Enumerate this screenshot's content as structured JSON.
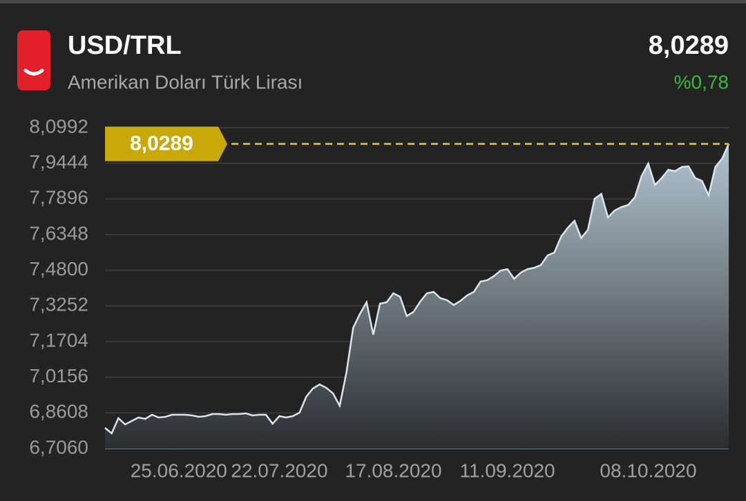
{
  "header": {
    "symbol": "USD/TRL",
    "name": "Amerikan Doları Türk Lirası",
    "price": "8,0289",
    "change": "%0,78"
  },
  "chart_data": {
    "type": "area",
    "categories": [
      null,
      null,
      null,
      null,
      null,
      null,
      null,
      null,
      null,
      null,
      null,
      "25.06.2020",
      null,
      null,
      null,
      null,
      null,
      null,
      null,
      null,
      null,
      null,
      null,
      null,
      null,
      null,
      "22.07.2020",
      null,
      null,
      null,
      null,
      null,
      null,
      null,
      null,
      null,
      null,
      null,
      null,
      null,
      null,
      null,
      null,
      "17.08.2020",
      null,
      null,
      null,
      null,
      null,
      null,
      null,
      null,
      null,
      null,
      null,
      null,
      null,
      null,
      null,
      null,
      "11.09.2020",
      null,
      null,
      null,
      null,
      null,
      null,
      null,
      null,
      null,
      null,
      null,
      null,
      null,
      null,
      null,
      null,
      null,
      null,
      null,
      null,
      "08.10.2020",
      null,
      null,
      null,
      null,
      null,
      null,
      null,
      null,
      null,
      null,
      null,
      null
    ],
    "values": [
      6.7959,
      6.7719,
      6.8378,
      6.8109,
      6.8258,
      6.8408,
      6.8348,
      6.8528,
      6.8408,
      6.8438,
      6.8528,
      6.8528,
      6.8528,
      6.8498,
      6.8438,
      6.8468,
      6.8558,
      6.8558,
      6.8528,
      6.8558,
      6.8558,
      6.8588,
      6.8498,
      6.8528,
      6.8528,
      6.8139,
      6.8468,
      6.8408,
      6.8468,
      6.8618,
      6.9307,
      6.9666,
      6.9846,
      6.9696,
      6.9457,
      6.8917,
      7.0355,
      7.2303,
      7.2902,
      7.3411,
      7.2003,
      7.3351,
      7.3411,
      7.3801,
      7.3651,
      7.2812,
      7.2992,
      7.3441,
      7.3801,
      7.386,
      7.3591,
      7.3501,
      7.3291,
      7.3471,
      7.3711,
      7.386,
      7.431,
      7.437,
      7.455,
      7.4789,
      7.4849,
      7.443,
      7.4699,
      7.4849,
      7.4909,
      7.5029,
      7.5448,
      7.5568,
      7.6257,
      7.6647,
      7.6946,
      7.6197,
      7.6557,
      7.7905,
      7.8115,
      7.7096,
      7.7396,
      7.7545,
      7.7635,
      7.7965,
      7.8893,
      7.9433,
      7.8504,
      7.8804,
      7.9163,
      7.9103,
      7.9283,
      7.9313,
      7.8804,
      7.8684,
      7.8055,
      7.9283,
      7.9642,
      8.0289
    ],
    "color": "#d8e6ee",
    "ylim": [
      6.706,
      8.0992
    ],
    "yticks": [
      {
        "value": 6.706,
        "label": "6,7060"
      },
      {
        "value": 6.8608,
        "label": "6,8608"
      },
      {
        "value": 7.0156,
        "label": "7,0156"
      },
      {
        "value": 7.1704,
        "label": "7,1704"
      },
      {
        "value": 7.3252,
        "label": "7,3252"
      },
      {
        "value": 7.48,
        "label": "7,4800"
      },
      {
        "value": 7.6348,
        "label": "7,6348"
      },
      {
        "value": 7.7896,
        "label": "7,7896"
      },
      {
        "value": 7.9444,
        "label": "7,9444"
      },
      {
        "value": 8.0992,
        "label": "8,0992"
      }
    ],
    "current": {
      "value": 8.0289,
      "label": "8,0289"
    },
    "grid": true
  }
}
